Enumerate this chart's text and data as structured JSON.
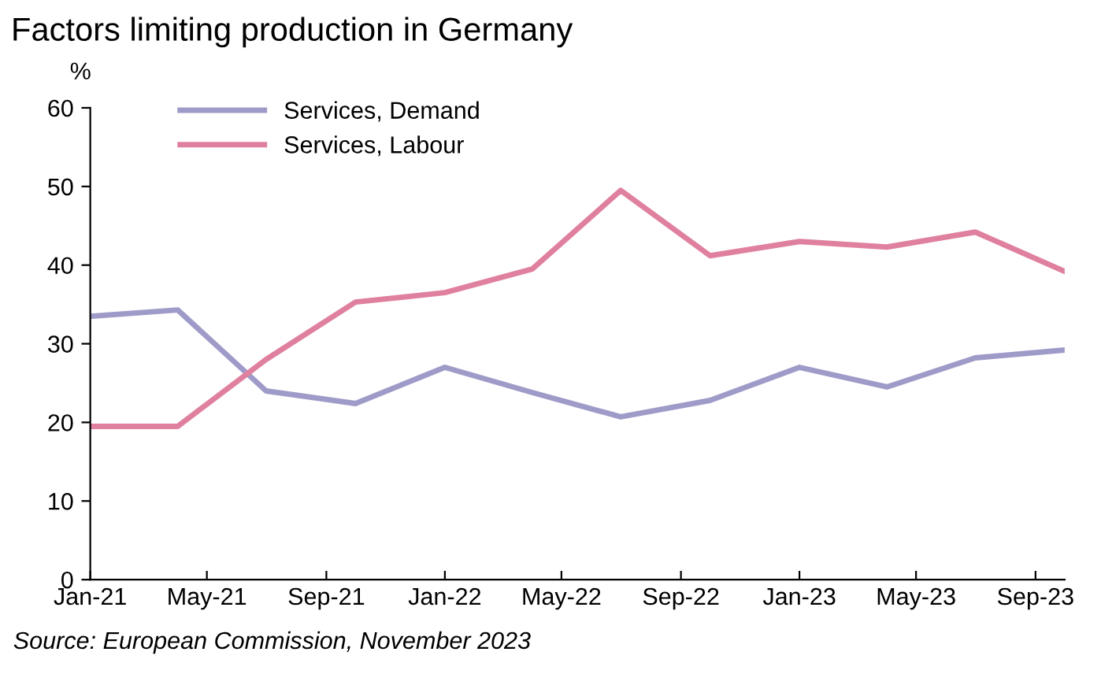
{
  "chart_data": {
    "type": "line",
    "title": "Factors limiting production in Germany",
    "ylabel": "%",
    "x": [
      "2021-01",
      "2021-04",
      "2021-07",
      "2021-10",
      "2022-01",
      "2022-04",
      "2022-07",
      "2022-10",
      "2023-01",
      "2023-04",
      "2023-07",
      "2023-10"
    ],
    "series": [
      {
        "name": "Services, Demand",
        "color": "#9f9bc8",
        "values": [
          33.5,
          34.3,
          24.0,
          22.4,
          27.0,
          23.8,
          20.7,
          22.8,
          27.0,
          24.5,
          28.2,
          29.2
        ]
      },
      {
        "name": "Services, Labour",
        "color": "#e0809f",
        "values": [
          19.5,
          19.5,
          28.0,
          35.3,
          36.5,
          39.5,
          49.5,
          41.2,
          43.0,
          42.3,
          44.2,
          39.2
        ]
      }
    ],
    "xlim": [
      "2021-01",
      "2023-10"
    ],
    "xticks": [
      {
        "value": "2021-01",
        "label": "Jan-21"
      },
      {
        "value": "2021-05",
        "label": "May-21"
      },
      {
        "value": "2021-09",
        "label": "Sep-21"
      },
      {
        "value": "2022-01",
        "label": "Jan-22"
      },
      {
        "value": "2022-05",
        "label": "May-22"
      },
      {
        "value": "2022-09",
        "label": "Sep-22"
      },
      {
        "value": "2023-01",
        "label": "Jan-23"
      },
      {
        "value": "2023-05",
        "label": "May-23"
      },
      {
        "value": "2023-09",
        "label": "Sep-23"
      }
    ],
    "ylim": [
      0,
      60
    ],
    "yticks": [
      0,
      10,
      20,
      30,
      40,
      50,
      60
    ],
    "grid": false,
    "legend": "top left",
    "marker": "none",
    "line_style": "solid",
    "annotations": [
      "Source: European Commission, November 2023"
    ]
  }
}
